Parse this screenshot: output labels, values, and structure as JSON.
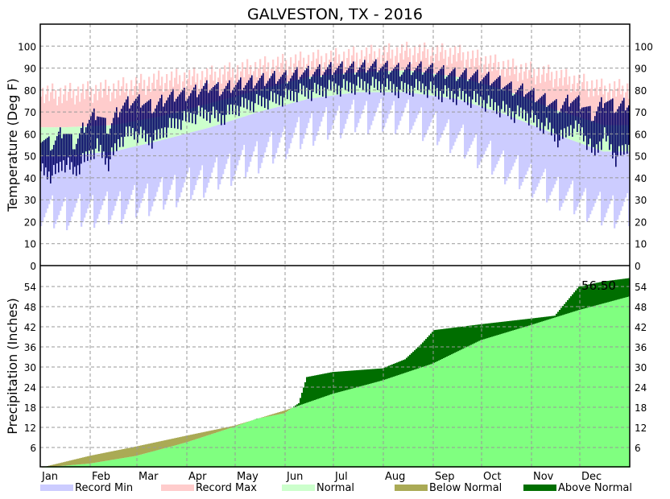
{
  "chart_data": [
    {
      "type": "bar",
      "title": "GALVESTON, TX - 2016",
      "ylabel": "Temperature (Deg F)",
      "ylim": [
        0,
        110
      ],
      "yticks": [
        0,
        10,
        20,
        30,
        40,
        50,
        60,
        70,
        80,
        90,
        100
      ],
      "months": [
        "Jan",
        "Feb",
        "Mar",
        "Apr",
        "May",
        "Jun",
        "Jul",
        "Aug",
        "Sep",
        "Oct",
        "Nov",
        "Dec"
      ],
      "grid": true,
      "normal_days": [
        15,
        46,
        75,
        106,
        136,
        167,
        197,
        228,
        259,
        289,
        320,
        350
      ],
      "normal_high": [
        63,
        64,
        68,
        74,
        80,
        86,
        88,
        89,
        86,
        80,
        71,
        64
      ],
      "normal_low": [
        50,
        52,
        57,
        63,
        70,
        76,
        79,
        79,
        76,
        69,
        60,
        52
      ],
      "record_high": [
        78,
        80,
        84,
        86,
        90,
        93,
        95,
        97,
        96,
        90,
        86,
        80
      ],
      "record_low": [
        24,
        26,
        32,
        40,
        50,
        62,
        68,
        68,
        58,
        45,
        34,
        25
      ],
      "actual_days_step": 7,
      "actual_high": [
        58,
        55,
        62,
        55,
        65,
        70,
        62,
        72,
        75,
        75,
        72,
        76,
        78,
        78,
        80,
        82,
        80,
        82,
        83,
        84,
        85,
        86,
        86,
        88,
        88,
        89,
        90,
        90,
        90,
        91,
        91,
        90,
        89,
        90,
        90,
        89,
        88,
        87,
        87,
        86,
        85,
        83,
        80,
        80,
        77,
        75,
        72,
        76,
        74,
        68,
        76,
        72,
        74
      ],
      "actual_low": [
        45,
        42,
        48,
        44,
        50,
        55,
        48,
        58,
        62,
        60,
        58,
        63,
        66,
        68,
        70,
        70,
        68,
        72,
        74,
        75,
        76,
        77,
        78,
        80,
        80,
        81,
        82,
        82,
        83,
        83,
        83,
        82,
        81,
        82,
        82,
        80,
        79,
        78,
        77,
        76,
        74,
        72,
        70,
        70,
        66,
        64,
        58,
        64,
        62,
        52,
        60,
        50,
        55
      ]
    },
    {
      "type": "area",
      "ylabel": "Precipitation (Inches)",
      "ylim": [
        0,
        60
      ],
      "yticks": [
        6,
        12,
        18,
        24,
        30,
        36,
        42,
        48,
        54
      ],
      "annotation": "56.50",
      "observed_days": [
        1,
        31,
        60,
        91,
        121,
        135,
        152,
        161,
        166,
        182,
        213,
        227,
        237,
        245,
        275,
        306,
        320,
        335,
        350,
        366
      ],
      "observed": [
        0,
        1.2,
        3.5,
        7.5,
        12.2,
        14.6,
        16.2,
        19.2,
        27.0,
        28.5,
        29.6,
        32.3,
        36.8,
        41.0,
        42.8,
        44.5,
        45.3,
        54.0,
        55.5,
        56.5
      ],
      "normal_days": [
        1,
        31,
        60,
        91,
        121,
        152,
        182,
        213,
        244,
        274,
        305,
        335,
        366
      ],
      "normal": [
        0,
        3.5,
        6.3,
        9.5,
        12.5,
        17,
        22,
        26,
        31,
        38,
        42.5,
        47,
        51
      ],
      "legend": [
        "Record Min",
        "Record Max",
        "Normal",
        "Below Normal",
        "Above Normal"
      ],
      "legend_position": "bottom"
    }
  ],
  "colors": {
    "record_min": "#ccccff",
    "record_max": "#ffcccc",
    "normal": "#ccffcc",
    "actual": "#000066",
    "below": "#aaaa55",
    "above": "#006e00",
    "precip_normal": "#80ff80"
  }
}
